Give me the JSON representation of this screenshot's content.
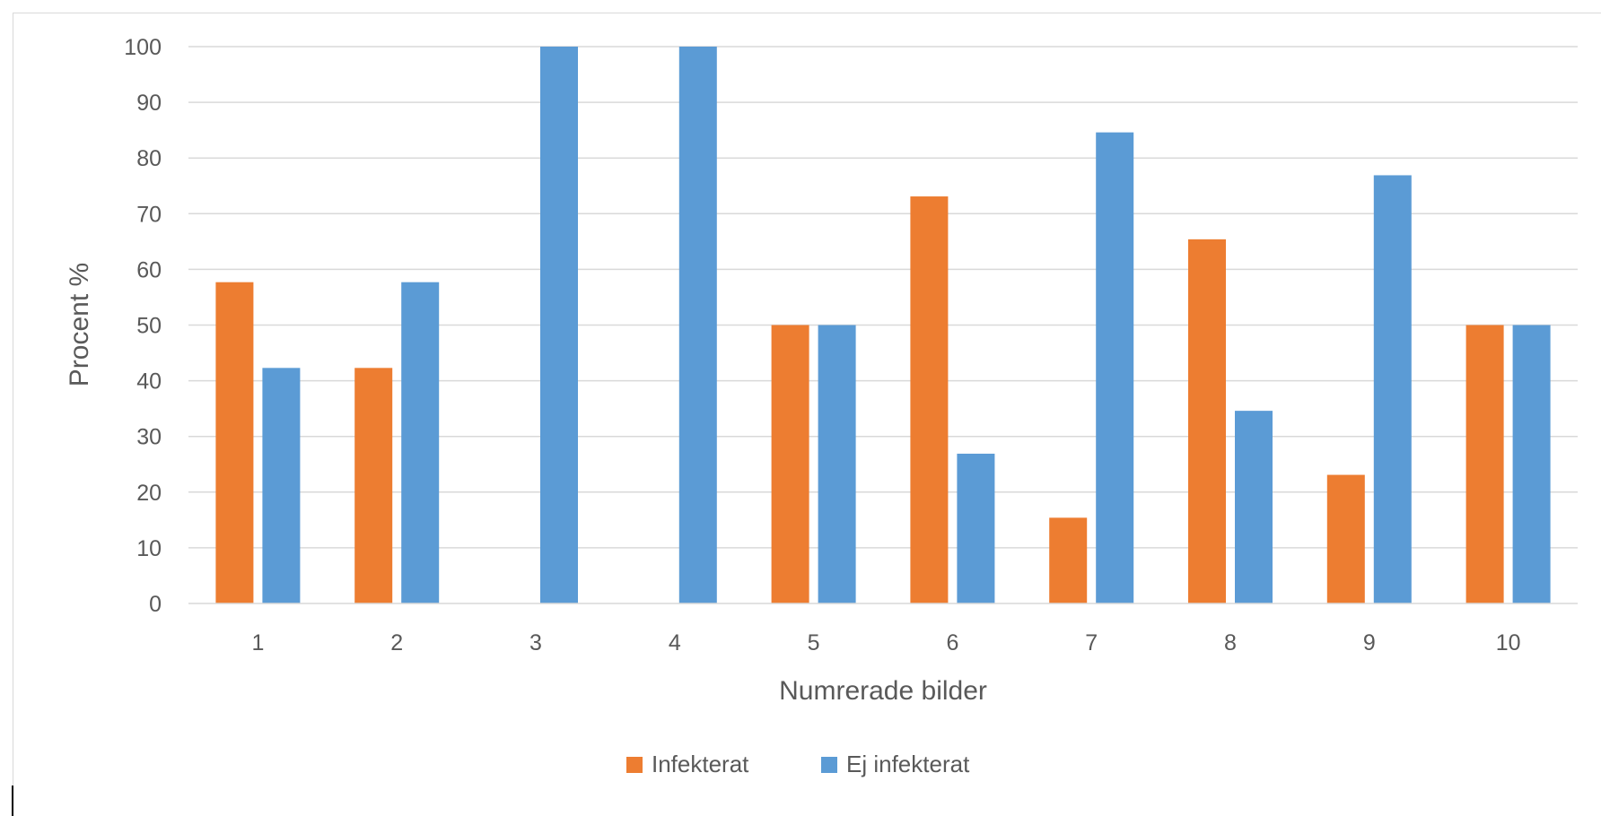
{
  "chart_data": {
    "type": "bar",
    "categories": [
      "1",
      "2",
      "3",
      "4",
      "5",
      "6",
      "7",
      "8",
      "9",
      "10"
    ],
    "series": [
      {
        "name": "Infekterat",
        "color": "#ED7D31",
        "values": [
          57.7,
          42.3,
          0,
          0,
          50,
          73.1,
          15.4,
          65.4,
          23.1,
          50
        ]
      },
      {
        "name": "Ej infekterat",
        "color": "#5B9BD5",
        "values": [
          42.3,
          57.7,
          100,
          100,
          50,
          26.9,
          84.6,
          34.6,
          76.9,
          50
        ]
      }
    ],
    "xlabel": "Numrerade bilder",
    "ylabel": "Procent %",
    "ylim": [
      0,
      100
    ],
    "yticks": [
      "0",
      "10",
      "20",
      "30",
      "40",
      "50",
      "60",
      "70",
      "80",
      "90",
      "100"
    ],
    "grid": true,
    "legend_position": "bottom"
  }
}
